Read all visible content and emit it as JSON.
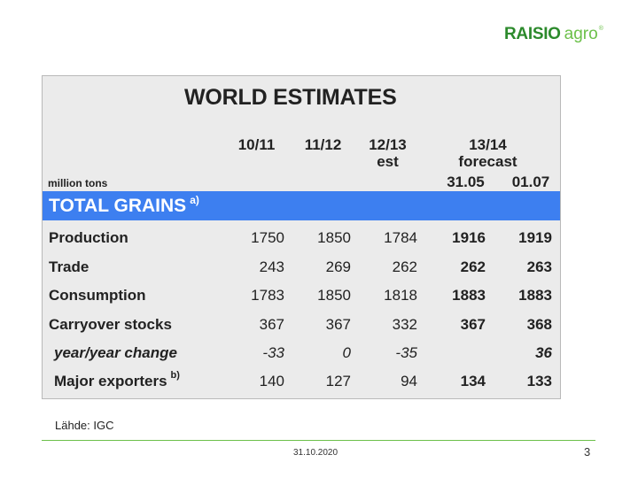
{
  "logo": {
    "brand": "RAISIO",
    "sub": "agro",
    "mark": "®"
  },
  "table": {
    "title": "WORLD ESTIMATES",
    "unit": "million tons",
    "columns": [
      {
        "line1": "10/11",
        "line2": ""
      },
      {
        "line1": "11/12",
        "line2": ""
      },
      {
        "line1": "12/13",
        "line2": "est"
      },
      {
        "group1": "13/14",
        "group2": "forecast",
        "sub": [
          "31.05",
          "01.07"
        ]
      }
    ],
    "section": {
      "label": "TOTAL GRAINS",
      "note": "a)"
    },
    "rows": [
      {
        "label": "Production",
        "note": "",
        "values": [
          "1750",
          "1850",
          "1784",
          "1916",
          "1919"
        ]
      },
      {
        "label": "Trade",
        "note": "",
        "values": [
          "243",
          "269",
          "262",
          "262",
          "263"
        ]
      },
      {
        "label": "Consumption",
        "note": "",
        "values": [
          "1783",
          "1850",
          "1818",
          "1883",
          "1883"
        ]
      },
      {
        "label": "Carryover stocks",
        "note": "",
        "values": [
          "367",
          "367",
          "332",
          "367",
          "368"
        ]
      },
      {
        "label": "year/year change",
        "note": "",
        "values": [
          "-33",
          "0",
          "-35",
          "",
          "36"
        ]
      },
      {
        "label": "Major exporters",
        "note": "b)",
        "values": [
          "140",
          "127",
          "94",
          "134",
          "133"
        ]
      }
    ]
  },
  "footer": {
    "source": "Lähde: IGC",
    "date": "31.10.2020",
    "page": "3"
  }
}
